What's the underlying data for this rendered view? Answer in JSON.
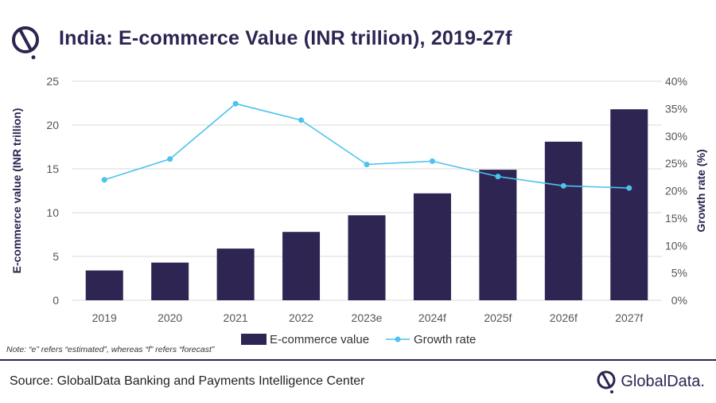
{
  "title": "India: E-commerce Value (INR trillion), 2019-27f",
  "note": "Note: “e” refers “estimated”, whereas “f” refers “forecast”",
  "source": "Source: GlobalData Banking and Payments Intelligence Center",
  "brand": {
    "name": "GlobalData."
  },
  "colors": {
    "bar": "#2e2553",
    "line": "#4cc3ec",
    "title": "#2d2452",
    "grid": "#d9d9d9"
  },
  "icons": {
    "title_logo": "globaldata-logo-icon",
    "brand_logo": "globaldata-logo-icon"
  },
  "chart_data": {
    "type": "bar",
    "categories": [
      "2019",
      "2020",
      "2021",
      "2022",
      "2023e",
      "2024f",
      "2025f",
      "2026f",
      "2027f"
    ],
    "series": [
      {
        "name": "E-commerce value",
        "type": "bar",
        "axis": "left",
        "values": [
          3.4,
          4.3,
          5.9,
          7.8,
          9.7,
          12.2,
          14.9,
          18.1,
          21.8
        ]
      },
      {
        "name": "Growth rate",
        "type": "line",
        "axis": "right",
        "values": [
          22.0,
          25.8,
          35.9,
          32.9,
          24.8,
          25.4,
          22.6,
          20.9,
          20.5
        ]
      }
    ],
    "ylabel": "E-commerce value (INR trillion)",
    "y2label": "Growth rate (%)",
    "ylim": [
      0,
      25
    ],
    "yticks": [
      "0",
      "5",
      "10",
      "15",
      "20",
      "25"
    ],
    "y2lim": [
      0,
      40
    ],
    "y2ticks": [
      "0%",
      "5%",
      "10%",
      "15%",
      "20%",
      "25%",
      "30%",
      "35%",
      "40%"
    ],
    "grid": true,
    "legend": "bottom-center"
  }
}
